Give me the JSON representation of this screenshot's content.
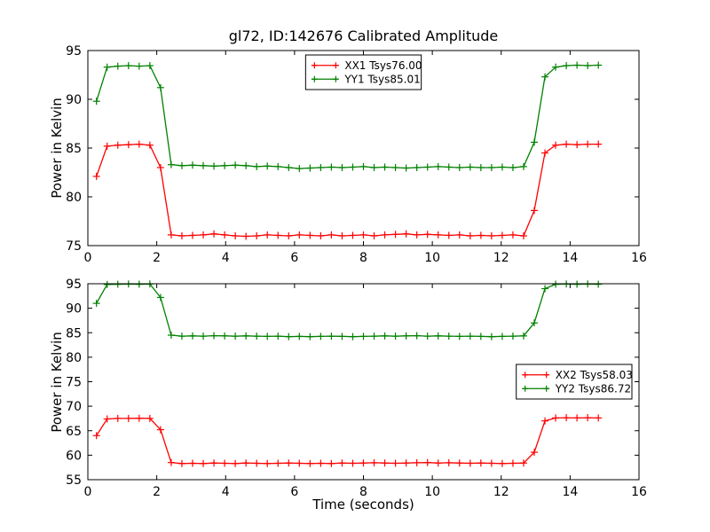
{
  "figure": {
    "background": "#ffffff",
    "frame_color": "#000000",
    "text_color": "#000000"
  },
  "chart_data": [
    {
      "type": "line",
      "title": "gl72, ID:142676 Calibrated Amplitude",
      "xlabel": "",
      "ylabel": "Power in Kelvin",
      "xlim": [
        0,
        16
      ],
      "ylim": [
        75,
        95
      ],
      "xticks": [
        0,
        2,
        4,
        6,
        8,
        10,
        12,
        14,
        16
      ],
      "yticks": [
        75,
        80,
        85,
        90,
        95
      ],
      "grid": false,
      "legend_position": "upper-center",
      "x": [
        0.25,
        0.56,
        0.87,
        1.18,
        1.49,
        1.8,
        2.11,
        2.42,
        2.73,
        3.04,
        3.35,
        3.66,
        3.97,
        4.28,
        4.59,
        4.9,
        5.21,
        5.52,
        5.83,
        6.14,
        6.45,
        6.76,
        7.07,
        7.38,
        7.69,
        8.0,
        8.31,
        8.62,
        8.93,
        9.24,
        9.55,
        9.86,
        10.17,
        10.48,
        10.79,
        11.1,
        11.41,
        11.72,
        12.03,
        12.34,
        12.65,
        12.96,
        13.27,
        13.58,
        13.89,
        14.2,
        14.51,
        14.82
      ],
      "series": [
        {
          "name": "XX1 Tsys76.00",
          "color": "#ff0000",
          "marker": "plus",
          "values": [
            82.1,
            85.2,
            85.3,
            85.35,
            85.4,
            85.3,
            83.0,
            76.1,
            76.0,
            76.05,
            76.1,
            76.2,
            76.1,
            76.0,
            75.95,
            76.0,
            76.1,
            76.05,
            76.0,
            76.1,
            76.05,
            76.0,
            76.1,
            76.0,
            76.05,
            76.1,
            76.0,
            76.1,
            76.15,
            76.2,
            76.1,
            76.15,
            76.1,
            76.05,
            76.1,
            76.0,
            76.05,
            76.0,
            76.05,
            76.1,
            76.0,
            78.6,
            84.5,
            85.3,
            85.4,
            85.35,
            85.4,
            85.4
          ]
        },
        {
          "name": "YY1 Tsys85.01",
          "color": "#008000",
          "marker": "plus",
          "values": [
            89.8,
            93.3,
            93.4,
            93.45,
            93.4,
            93.45,
            91.2,
            83.3,
            83.2,
            83.25,
            83.2,
            83.15,
            83.2,
            83.25,
            83.2,
            83.1,
            83.15,
            83.1,
            83.0,
            82.9,
            82.95,
            83.0,
            83.05,
            83.0,
            83.05,
            83.1,
            83.0,
            83.05,
            83.0,
            82.95,
            83.0,
            83.05,
            83.1,
            83.05,
            83.0,
            83.05,
            83.0,
            83.0,
            83.05,
            83.0,
            83.1,
            85.6,
            92.3,
            93.3,
            93.45,
            93.5,
            93.45,
            93.5
          ]
        }
      ]
    },
    {
      "type": "line",
      "title": "",
      "xlabel": "Time (seconds)",
      "ylabel": "Power in Kelvin",
      "xlim": [
        0,
        16
      ],
      "ylim": [
        55,
        95
      ],
      "xticks": [
        0,
        2,
        4,
        6,
        8,
        10,
        12,
        14,
        16
      ],
      "yticks": [
        55,
        60,
        65,
        70,
        75,
        80,
        85,
        90,
        95
      ],
      "grid": false,
      "legend_position": "center-right",
      "x": [
        0.25,
        0.56,
        0.87,
        1.18,
        1.49,
        1.8,
        2.11,
        2.42,
        2.73,
        3.04,
        3.35,
        3.66,
        3.97,
        4.28,
        4.59,
        4.9,
        5.21,
        5.52,
        5.83,
        6.14,
        6.45,
        6.76,
        7.07,
        7.38,
        7.69,
        8.0,
        8.31,
        8.62,
        8.93,
        9.24,
        9.55,
        9.86,
        10.17,
        10.48,
        10.79,
        11.1,
        11.41,
        11.72,
        12.03,
        12.34,
        12.65,
        12.96,
        13.27,
        13.58,
        13.89,
        14.2,
        14.51,
        14.82
      ],
      "series": [
        {
          "name": "XX2 Tsys58.03",
          "color": "#ff0000",
          "marker": "plus",
          "values": [
            64.0,
            67.4,
            67.5,
            67.5,
            67.55,
            67.5,
            65.2,
            58.5,
            58.3,
            58.35,
            58.3,
            58.4,
            58.35,
            58.3,
            58.4,
            58.35,
            58.3,
            58.35,
            58.4,
            58.35,
            58.3,
            58.35,
            58.3,
            58.4,
            58.35,
            58.4,
            58.45,
            58.4,
            58.35,
            58.4,
            58.45,
            58.5,
            58.4,
            58.45,
            58.4,
            58.35,
            58.4,
            58.35,
            58.3,
            58.35,
            58.4,
            60.6,
            67.0,
            67.6,
            67.65,
            67.6,
            67.65,
            67.6
          ]
        },
        {
          "name": "YY2 Tsys86.72",
          "color": "#008000",
          "marker": "plus",
          "values": [
            91.0,
            94.85,
            94.9,
            94.95,
            94.9,
            94.95,
            92.2,
            84.5,
            84.3,
            84.35,
            84.3,
            84.4,
            84.35,
            84.3,
            84.35,
            84.3,
            84.25,
            84.3,
            84.2,
            84.25,
            84.2,
            84.25,
            84.3,
            84.25,
            84.2,
            84.25,
            84.3,
            84.35,
            84.3,
            84.35,
            84.4,
            84.3,
            84.35,
            84.3,
            84.25,
            84.3,
            84.25,
            84.2,
            84.25,
            84.3,
            84.35,
            87.0,
            94.0,
            94.9,
            94.95,
            94.9,
            94.95,
            94.9
          ]
        }
      ]
    }
  ]
}
